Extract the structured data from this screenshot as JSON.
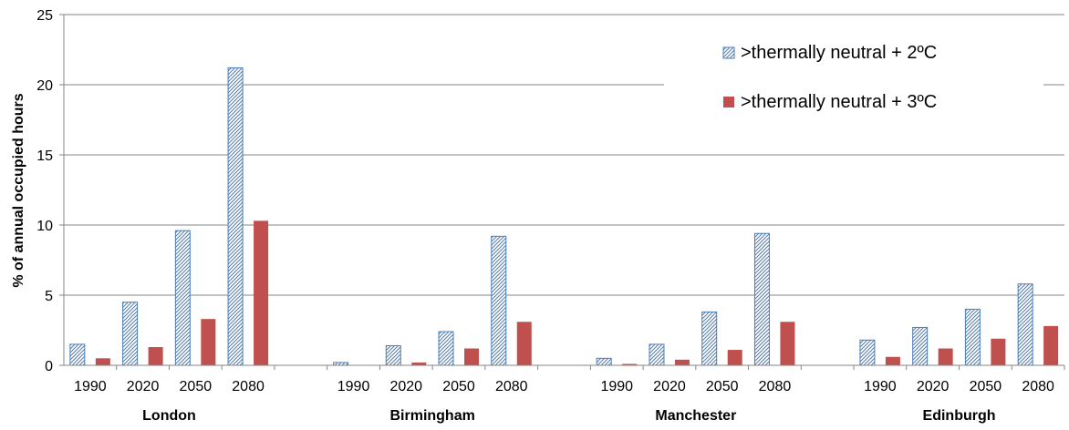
{
  "chart_data": {
    "type": "bar",
    "title": "",
    "ylabel": "% of annual occupied hours",
    "xlabel": "",
    "ylim": [
      0,
      25
    ],
    "yticks": [
      "0",
      "5",
      "10",
      "15",
      "20",
      "25"
    ],
    "grid": true,
    "legend_position": "top-right",
    "groups": [
      {
        "name": "London",
        "categories": [
          "1990",
          "2020",
          "2050",
          "2080"
        ]
      },
      {
        "name": "Birmingham",
        "categories": [
          "1990",
          "2020",
          "2050",
          "2080"
        ]
      },
      {
        "name": "Manchester",
        "categories": [
          "1990",
          "2020",
          "2050",
          "2080"
        ]
      },
      {
        "name": "Edinburgh",
        "categories": [
          "1990",
          "2020",
          "2050",
          "2080"
        ]
      }
    ],
    "series": [
      {
        "name": ">thermally neutral + 2ºC",
        "style": "hatched",
        "color": "#4a7ebb",
        "values": [
          1.5,
          4.5,
          9.6,
          21.2,
          0.2,
          1.4,
          2.4,
          9.2,
          0.5,
          1.5,
          3.8,
          9.4,
          1.8,
          2.7,
          4.0,
          5.8
        ]
      },
      {
        "name": ">thermally neutral + 3ºC",
        "style": "solid",
        "color": "#c0504d",
        "values": [
          0.5,
          1.3,
          3.3,
          10.3,
          0.0,
          0.2,
          1.2,
          3.1,
          0.1,
          0.4,
          1.1,
          3.1,
          0.6,
          1.2,
          1.9,
          2.8
        ]
      }
    ]
  }
}
